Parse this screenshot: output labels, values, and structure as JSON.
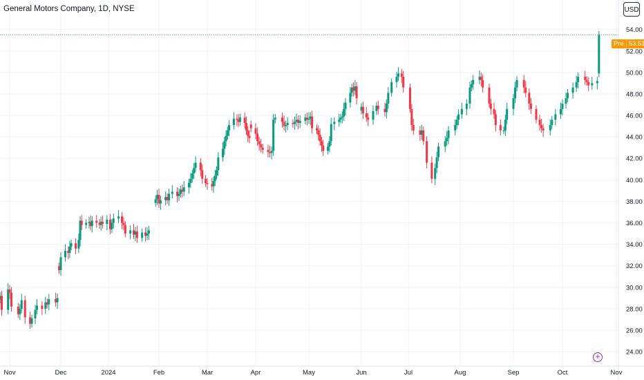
{
  "header": {
    "title": "General Motors Company, 1D, NYSE",
    "currency_button": "USD"
  },
  "price_tag": {
    "label": "Pre",
    "value": "53.51"
  },
  "colors": {
    "up": "#089981",
    "down": "#f23645",
    "pre_line": "#089981",
    "pre_tag": "#ff9800",
    "grid": "#f0f3fa"
  },
  "chart_data": {
    "type": "candlestick",
    "title": "General Motors Company, 1D, NYSE",
    "ylim": [
      23.3,
      55.2
    ],
    "yticks": [
      24,
      26,
      28,
      30,
      32,
      34,
      36,
      38,
      40,
      42,
      44,
      46,
      48,
      50,
      52,
      54
    ],
    "ytick_labels": [
      "24.00",
      "26.00",
      "28.00",
      "30.00",
      "32.00",
      "34.00",
      "36.00",
      "38.00",
      "40.00",
      "42.00",
      "44.00",
      "46.00",
      "48.00",
      "50.00",
      "52.00",
      "54.00"
    ],
    "xticks": [
      {
        "label": "Nov",
        "date": "2023-11-01"
      },
      {
        "label": "Dec",
        "date": "2023-12-01"
      },
      {
        "label": "2024",
        "date": "2024-01-02"
      },
      {
        "label": "Feb",
        "date": "2024-02-01"
      },
      {
        "label": "Mar",
        "date": "2024-03-01"
      },
      {
        "label": "Apr",
        "date": "2024-04-01"
      },
      {
        "label": "May",
        "date": "2024-05-01"
      },
      {
        "label": "Jun",
        "date": "2024-06-03"
      },
      {
        "label": "Jul",
        "date": "2024-07-01"
      },
      {
        "label": "Aug",
        "date": "2024-08-01"
      },
      {
        "label": "Sep",
        "date": "2024-09-03"
      },
      {
        "label": "Oct",
        "date": "2024-10-01"
      },
      {
        "label": "Nov",
        "date": "2024-11-01"
      }
    ],
    "premarket_price": 53.51,
    "grid": true,
    "segments": [
      {
        "start": "2023-10-26",
        "end": "2023-11-29",
        "values": [
          29.2,
          27.9,
          29.8,
          29.5,
          28.2,
          27.5,
          28.0,
          28.8,
          27.2,
          26.6,
          27.1,
          27.9,
          28.3,
          28.0,
          28.6,
          28.4,
          28.9,
          28.6,
          29.0
        ]
      },
      {
        "start": "2023-11-30",
        "end": "2024-01-26",
        "values": [
          31.6,
          32.8,
          33.4,
          33.2,
          33.8,
          34.1,
          33.6,
          34.4,
          36.2,
          35.8,
          36.0,
          36.1,
          35.7,
          36.2,
          36.0,
          35.8,
          36.1,
          35.9,
          36.3,
          35.4,
          36.0,
          36.4,
          36.6,
          36.0,
          35.8,
          35.0,
          35.3,
          34.9,
          35.2,
          34.6,
          35.1,
          34.8,
          35.0,
          35.3
        ]
      },
      {
        "start": "2024-01-30",
        "end": "2024-03-28",
        "values": [
          38.2,
          38.6,
          37.8,
          38.1,
          38.4,
          38.1,
          38.7,
          38.9,
          38.5,
          38.7,
          39.1,
          38.9,
          39.3,
          39.7,
          40.1,
          40.6,
          41.1,
          41.6,
          40.9,
          40.1,
          39.7,
          39.6,
          39.4,
          39.9,
          40.4,
          40.9,
          42.1,
          42.9,
          43.6,
          44.1,
          44.6,
          45.1,
          45.7,
          45.6,
          45.4,
          45.8,
          45.3,
          44.6,
          44.1,
          43.9
        ]
      },
      {
        "start": "2024-03-29",
        "end": "2024-05-31",
        "values": [
          44.8,
          44.3,
          43.6,
          43.3,
          43.0,
          42.8,
          42.6,
          42.5,
          42.7,
          45.6,
          45.8,
          45.4,
          45.0,
          45.1,
          45.3,
          45.2,
          45.4,
          45.6,
          45.3,
          45.5,
          45.8,
          45.6,
          45.7,
          45.9,
          44.8,
          44.6,
          44.2,
          43.6,
          43.2,
          42.7,
          43.1,
          43.6,
          45.2,
          45.4,
          45.6,
          45.8,
          45.9,
          46.6,
          47.2,
          48.1,
          48.6,
          48.3,
          48.7,
          47.6
        ]
      },
      {
        "start": "2024-06-03",
        "end": "2024-10-21",
        "values": [
          46.8,
          46.2,
          45.8,
          45.6,
          46.4,
          46.9,
          46.6,
          46.3,
          47.1,
          48.1,
          49.1,
          49.6,
          49.9,
          49.6,
          48.6,
          46.6,
          45.1,
          44.6,
          44.2,
          44.6,
          43.6,
          41.6,
          40.1,
          41.1,
          42.1,
          43.1,
          43.6,
          43.9,
          44.6,
          45.1,
          45.6,
          46.1,
          46.6,
          47.1,
          48.6,
          48.9,
          49.3,
          49.6,
          49.3,
          48.6,
          47.1,
          46.6,
          46.1,
          45.1,
          44.6,
          44.6,
          45.6,
          46.6,
          47.6,
          48.6,
          49.3,
          48.6,
          48.1,
          47.1,
          46.6,
          45.6,
          45.1,
          44.8,
          44.6,
          45.1,
          45.6,
          46.1,
          46.6,
          47.1,
          47.6,
          48.1,
          48.6,
          49.1,
          49.6,
          49.3,
          49.1,
          48.8,
          49.0,
          49.2
        ]
      },
      {
        "start": "2024-10-22",
        "end": "2024-10-22",
        "values": [
          53.5
        ]
      }
    ]
  }
}
